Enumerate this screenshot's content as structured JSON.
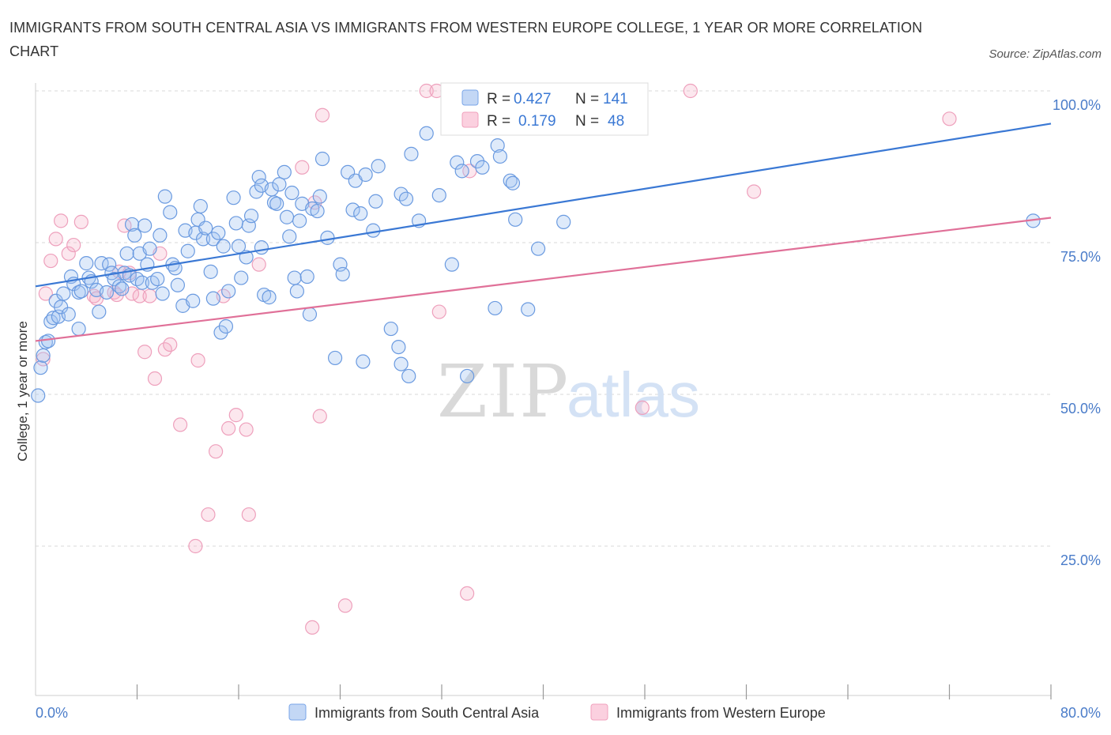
{
  "title": "IMMIGRANTS FROM SOUTH CENTRAL ASIA VS IMMIGRANTS FROM WESTERN EUROPE COLLEGE, 1 YEAR OR MORE CORRELATION CHART",
  "source": "Source: ZipAtlas.com",
  "watermark": {
    "zip": "ZIP",
    "atlas": "atlas"
  },
  "colors": {
    "series_a": "#7aa6e8",
    "series_a_line": "#3a78d4",
    "series_b": "#f0a0bc",
    "series_b_line": "#e07098",
    "tick_text": "#4a7cc9",
    "grid": "#d8d8d8"
  },
  "stats": [
    {
      "r_label": "R =",
      "r_value": "0.427",
      "n_label": "N =",
      "n_value": "141"
    },
    {
      "r_label": "R =",
      "r_value": "0.179",
      "n_label": "N =",
      "n_value": "48"
    }
  ],
  "chart_data": {
    "type": "scatter",
    "title": "IMMIGRANTS FROM SOUTH CENTRAL ASIA VS IMMIGRANTS FROM WESTERN EUROPE COLLEGE, 1 YEAR OR MORE CORRELATION CHART",
    "xlabel": "",
    "ylabel": "College, 1 year or more",
    "xlim": [
      0,
      80
    ],
    "ylim": [
      0,
      100
    ],
    "x_tick_labels": [
      "0.0%",
      "80.0%"
    ],
    "y_tick_values": [
      25,
      50,
      75,
      100
    ],
    "y_tick_labels": [
      "25.0%",
      "50.0%",
      "75.0%",
      "100.0%"
    ],
    "grid": true,
    "legend_position": "bottom",
    "series": [
      {
        "name": "Immigrants from South Central Asia",
        "color": "#7aa6e8",
        "trend": {
          "x": [
            0,
            80
          ],
          "y": [
            67.8,
            94.6
          ]
        },
        "points": [
          [
            0.2,
            49.8
          ],
          [
            0.4,
            54.4
          ],
          [
            0.6,
            56.4
          ],
          [
            0.8,
            58.6
          ],
          [
            1.0,
            58.8
          ],
          [
            1.2,
            62.0
          ],
          [
            1.4,
            62.6
          ],
          [
            1.6,
            65.4
          ],
          [
            1.8,
            62.8
          ],
          [
            2.0,
            64.4
          ],
          [
            2.2,
            66.6
          ],
          [
            2.6,
            63.2
          ],
          [
            2.8,
            69.4
          ],
          [
            3.0,
            68.2
          ],
          [
            3.4,
            60.8
          ],
          [
            3.4,
            66.8
          ],
          [
            3.6,
            67.0
          ],
          [
            4.0,
            71.6
          ],
          [
            4.2,
            69.2
          ],
          [
            4.4,
            68.6
          ],
          [
            4.8,
            67.2
          ],
          [
            5.0,
            63.6
          ],
          [
            5.2,
            71.6
          ],
          [
            5.6,
            66.8
          ],
          [
            5.8,
            71.4
          ],
          [
            6.0,
            70.0
          ],
          [
            6.2,
            69.0
          ],
          [
            6.6,
            67.8
          ],
          [
            6.8,
            67.4
          ],
          [
            7.0,
            70.0
          ],
          [
            7.2,
            73.2
          ],
          [
            7.4,
            69.6
          ],
          [
            7.6,
            78.0
          ],
          [
            7.8,
            76.2
          ],
          [
            8.0,
            69.0
          ],
          [
            8.2,
            73.2
          ],
          [
            8.4,
            68.4
          ],
          [
            8.6,
            77.8
          ],
          [
            8.8,
            71.4
          ],
          [
            9.0,
            74.0
          ],
          [
            9.2,
            68.4
          ],
          [
            9.6,
            69.0
          ],
          [
            9.8,
            76.2
          ],
          [
            10.0,
            66.6
          ],
          [
            10.2,
            82.6
          ],
          [
            10.6,
            80.0
          ],
          [
            10.8,
            71.4
          ],
          [
            11.0,
            70.8
          ],
          [
            11.2,
            68.0
          ],
          [
            11.6,
            64.6
          ],
          [
            11.8,
            77.0
          ],
          [
            12.0,
            73.6
          ],
          [
            12.4,
            65.4
          ],
          [
            12.6,
            76.6
          ],
          [
            12.8,
            78.8
          ],
          [
            13.0,
            81.0
          ],
          [
            13.2,
            75.6
          ],
          [
            13.4,
            77.4
          ],
          [
            13.8,
            70.2
          ],
          [
            14.0,
            65.8
          ],
          [
            14.0,
            75.6
          ],
          [
            14.4,
            76.6
          ],
          [
            14.6,
            60.2
          ],
          [
            14.8,
            74.4
          ],
          [
            15.0,
            61.2
          ],
          [
            15.2,
            67.0
          ],
          [
            15.6,
            82.4
          ],
          [
            15.8,
            78.2
          ],
          [
            16.0,
            74.4
          ],
          [
            16.2,
            69.2
          ],
          [
            16.6,
            72.6
          ],
          [
            16.8,
            77.8
          ],
          [
            17.0,
            79.4
          ],
          [
            17.4,
            83.4
          ],
          [
            17.6,
            85.8
          ],
          [
            17.8,
            84.4
          ],
          [
            17.8,
            74.2
          ],
          [
            18.0,
            66.4
          ],
          [
            18.4,
            66.0
          ],
          [
            18.6,
            83.8
          ],
          [
            18.8,
            81.6
          ],
          [
            19.0,
            81.4
          ],
          [
            19.2,
            84.6
          ],
          [
            19.6,
            86.6
          ],
          [
            19.8,
            79.2
          ],
          [
            20.0,
            76.0
          ],
          [
            20.2,
            83.2
          ],
          [
            20.4,
            69.2
          ],
          [
            20.6,
            67.0
          ],
          [
            20.8,
            78.6
          ],
          [
            21.0,
            81.4
          ],
          [
            21.4,
            69.4
          ],
          [
            21.6,
            63.2
          ],
          [
            21.8,
            80.6
          ],
          [
            22.2,
            80.2
          ],
          [
            22.4,
            82.6
          ],
          [
            22.6,
            88.8
          ],
          [
            23.0,
            75.8
          ],
          [
            23.6,
            56.0
          ],
          [
            24.0,
            71.4
          ],
          [
            24.2,
            69.8
          ],
          [
            24.6,
            86.6
          ],
          [
            25.0,
            80.4
          ],
          [
            25.2,
            85.2
          ],
          [
            25.6,
            79.8
          ],
          [
            25.8,
            55.4
          ],
          [
            26.0,
            86.2
          ],
          [
            26.6,
            77.0
          ],
          [
            26.8,
            81.8
          ],
          [
            27.0,
            87.6
          ],
          [
            28.0,
            60.8
          ],
          [
            28.6,
            57.8
          ],
          [
            28.8,
            55.0
          ],
          [
            28.8,
            83.0
          ],
          [
            29.2,
            82.2
          ],
          [
            29.4,
            53.0
          ],
          [
            29.6,
            89.6
          ],
          [
            30.2,
            78.6
          ],
          [
            30.8,
            93.0
          ],
          [
            31.8,
            82.8
          ],
          [
            32.8,
            71.4
          ],
          [
            33.2,
            88.2
          ],
          [
            33.6,
            86.8
          ],
          [
            34.0,
            53.0
          ],
          [
            34.8,
            88.4
          ],
          [
            35.2,
            87.4
          ],
          [
            36.2,
            64.2
          ],
          [
            36.4,
            91.0
          ],
          [
            36.6,
            89.2
          ],
          [
            37.4,
            85.2
          ],
          [
            37.6,
            84.8
          ],
          [
            37.8,
            78.8
          ],
          [
            38.8,
            64.0
          ],
          [
            39.6,
            74.0
          ],
          [
            41.6,
            78.4
          ],
          [
            78.6,
            78.6
          ]
        ]
      },
      {
        "name": "Immigrants from Western Europe",
        "color": "#f0a0bc",
        "trend": {
          "x": [
            0,
            80
          ],
          "y": [
            58.8,
            79.1
          ]
        },
        "points": [
          [
            0.6,
            55.8
          ],
          [
            0.8,
            66.6
          ],
          [
            1.2,
            72.0
          ],
          [
            1.6,
            75.6
          ],
          [
            2.0,
            78.6
          ],
          [
            2.6,
            73.2
          ],
          [
            3.0,
            74.6
          ],
          [
            3.6,
            78.4
          ],
          [
            4.6,
            66.2
          ],
          [
            4.8,
            65.8
          ],
          [
            6.2,
            66.8
          ],
          [
            6.4,
            66.4
          ],
          [
            6.6,
            70.2
          ],
          [
            7.0,
            77.8
          ],
          [
            7.4,
            70.0
          ],
          [
            7.6,
            66.6
          ],
          [
            8.2,
            66.2
          ],
          [
            8.6,
            57.0
          ],
          [
            9.0,
            66.2
          ],
          [
            9.4,
            52.6
          ],
          [
            9.8,
            73.2
          ],
          [
            10.2,
            57.4
          ],
          [
            10.6,
            58.2
          ],
          [
            11.4,
            45.0
          ],
          [
            12.6,
            25.0
          ],
          [
            12.8,
            55.6
          ],
          [
            13.6,
            30.2
          ],
          [
            14.2,
            40.6
          ],
          [
            14.8,
            66.2
          ],
          [
            15.2,
            44.4
          ],
          [
            15.8,
            46.6
          ],
          [
            16.6,
            44.2
          ],
          [
            16.8,
            30.2
          ],
          [
            17.6,
            71.4
          ],
          [
            21.0,
            87.4
          ],
          [
            21.8,
            11.6
          ],
          [
            22.0,
            81.6
          ],
          [
            22.4,
            46.4
          ],
          [
            22.6,
            96.0
          ],
          [
            24.4,
            15.2
          ],
          [
            30.8,
            100.0
          ],
          [
            31.6,
            100.0
          ],
          [
            31.8,
            63.6
          ],
          [
            34.0,
            17.2
          ],
          [
            34.2,
            86.8
          ],
          [
            47.8,
            47.8
          ],
          [
            51.6,
            100.0
          ],
          [
            56.6,
            83.4
          ],
          [
            72.0,
            95.4
          ]
        ]
      }
    ]
  }
}
